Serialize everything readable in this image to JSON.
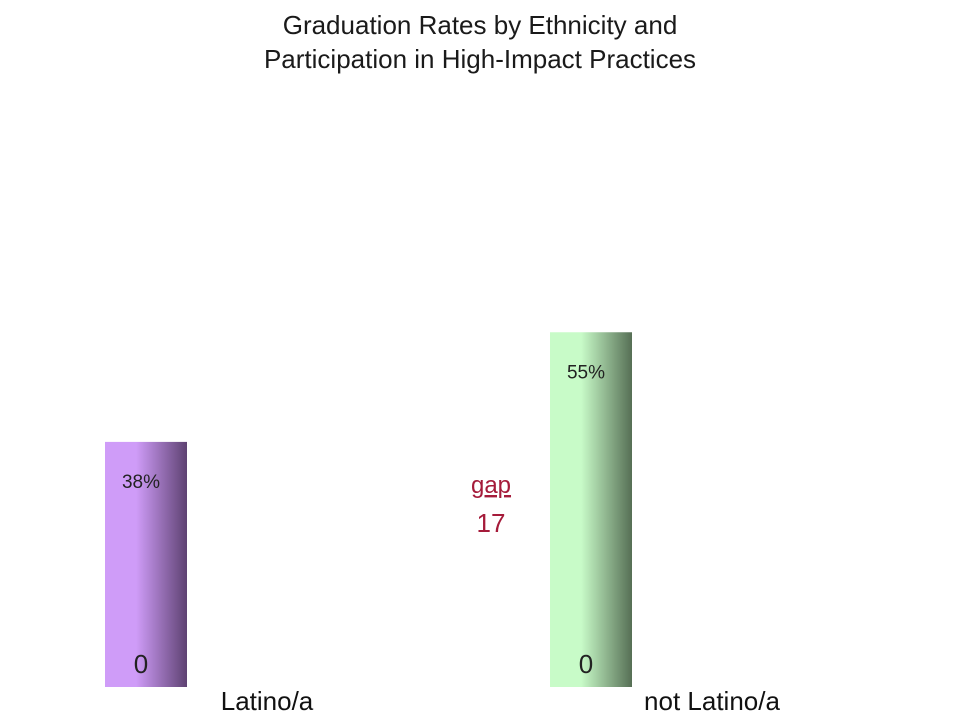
{
  "chart_data": {
    "type": "bar",
    "title_lines": [
      "Graduation Rates by Ethnicity and",
      "Participation in High-Impact Practices"
    ],
    "categories": [
      "Latino/a",
      "not Latino/a"
    ],
    "values": [
      38,
      55
    ],
    "value_labels": [
      "38%",
      "55%"
    ],
    "base_labels": [
      "0",
      "0"
    ],
    "annotation": {
      "label": "gap",
      "value": "17"
    },
    "ylim": [
      0,
      100
    ],
    "grid": false,
    "colors": {
      "bars": [
        {
          "light": "#cf9cf8",
          "dark": "#5e4272"
        },
        {
          "light": "#c8fbc8",
          "dark": "#566f55"
        }
      ],
      "annotation": "#a51b3a"
    }
  }
}
